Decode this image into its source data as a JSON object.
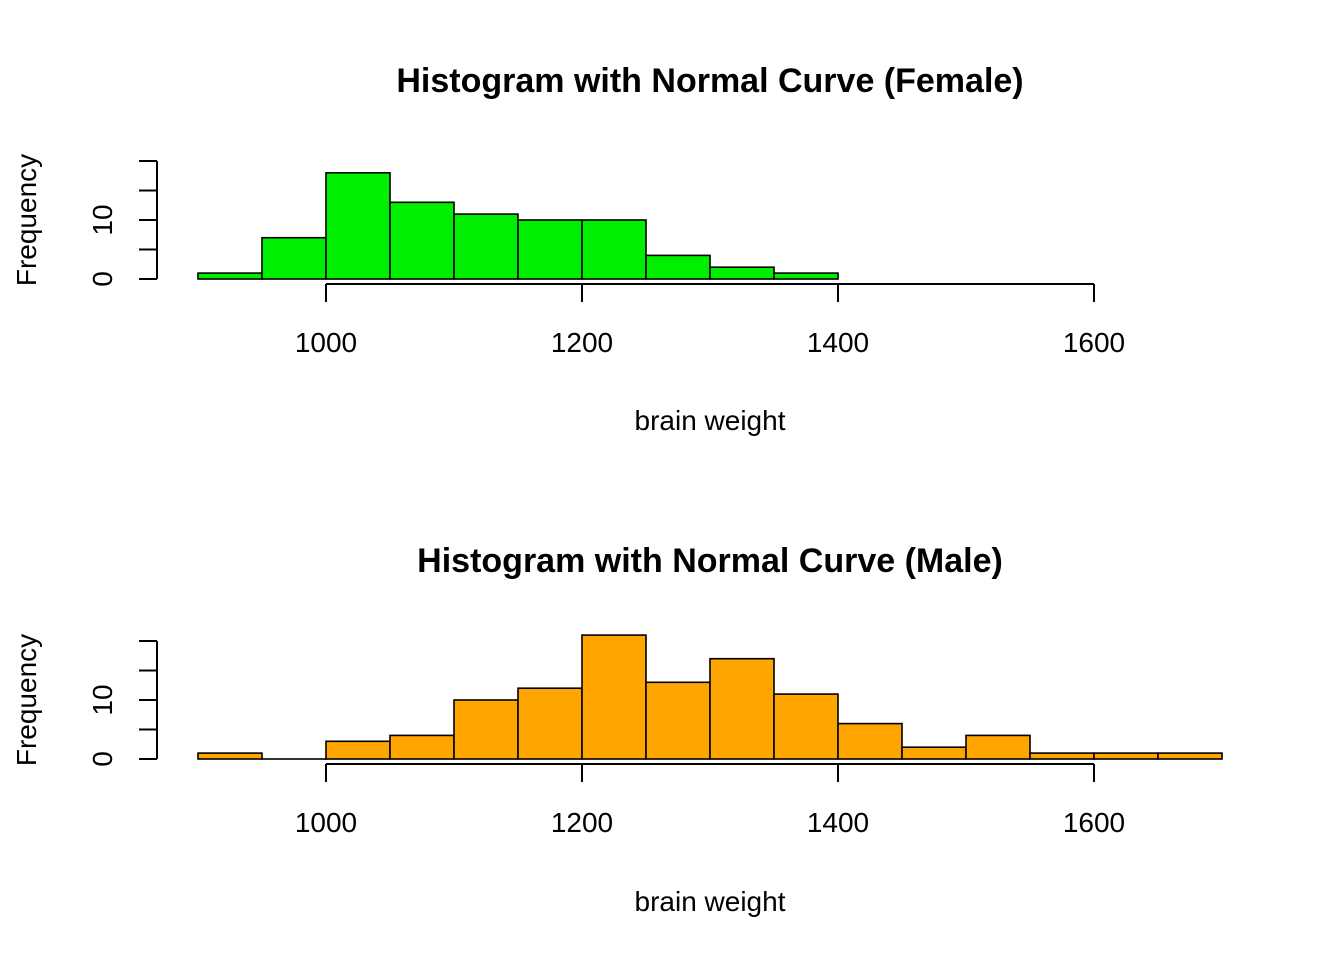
{
  "chart_data": [
    {
      "type": "bar",
      "title": "Histogram with Normal Curve (Female)",
      "xlabel": "brain weight",
      "ylabel": "Frequency",
      "bin_width": 50,
      "bin_starts": [
        900,
        950,
        1000,
        1050,
        1100,
        1150,
        1200,
        1250,
        1300,
        1350
      ],
      "values": [
        1,
        7,
        18,
        13,
        11,
        10,
        10,
        4,
        2,
        1
      ],
      "xlim": [
        900,
        1600
      ],
      "xticks": [
        1000,
        1200,
        1400,
        1600
      ],
      "ylim": [
        0,
        20
      ],
      "yticks": [
        0,
        10
      ],
      "color": "#00ee00",
      "grid": false
    },
    {
      "type": "bar",
      "title": "Histogram with Normal Curve (Male)",
      "xlabel": "brain weight",
      "ylabel": "Frequency",
      "bin_width": 50,
      "bin_starts": [
        900,
        950,
        1000,
        1050,
        1100,
        1150,
        1200,
        1250,
        1300,
        1350,
        1400,
        1450,
        1500,
        1550,
        1600,
        1650
      ],
      "values": [
        1,
        0,
        3,
        4,
        10,
        12,
        21,
        13,
        17,
        11,
        6,
        2,
        4,
        1,
        1,
        1
      ],
      "xlim": [
        900,
        1700
      ],
      "xticks": [
        1000,
        1200,
        1400,
        1600
      ],
      "ylim": [
        0,
        20
      ],
      "yticks": [
        0,
        10
      ],
      "color": "#ffa500",
      "grid": false
    }
  ]
}
